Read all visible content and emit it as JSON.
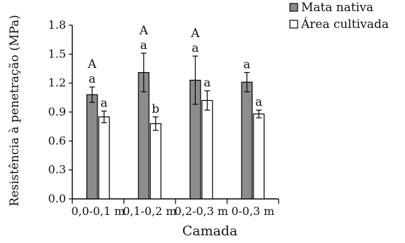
{
  "chart_data": {
    "type": "bar",
    "title": "",
    "xlabel": "Camada",
    "ylabel": "Resistência à penetração (MPa)",
    "ylim": [
      0.0,
      1.8
    ],
    "yticks": [
      "0.0",
      "0.3",
      "0.6",
      "0.9",
      "1.2",
      "1.5",
      "1.8"
    ],
    "categories": [
      "0,0-0,1 m",
      "0,1-0,2 m",
      "0,2-0,3 m",
      "0-0,3 m"
    ],
    "grid": false,
    "legend_position": "top-right",
    "series": [
      {
        "name": "Mata nativa",
        "color": "#8c8c8c",
        "values": [
          1.08,
          1.31,
          1.23,
          1.21
        ],
        "errors": [
          0.08,
          0.2,
          0.25,
          0.1
        ],
        "labels": [
          "a",
          "a",
          "a",
          "a"
        ]
      },
      {
        "name": "Área cultivada",
        "color": "#ffffff",
        "values": [
          0.85,
          0.78,
          1.02,
          0.88
        ],
        "errors": [
          0.06,
          0.07,
          0.1,
          0.04
        ],
        "labels": [
          "a",
          "b",
          "a",
          "a"
        ]
      }
    ],
    "group_labels": [
      "A",
      "A",
      "A",
      ""
    ]
  }
}
